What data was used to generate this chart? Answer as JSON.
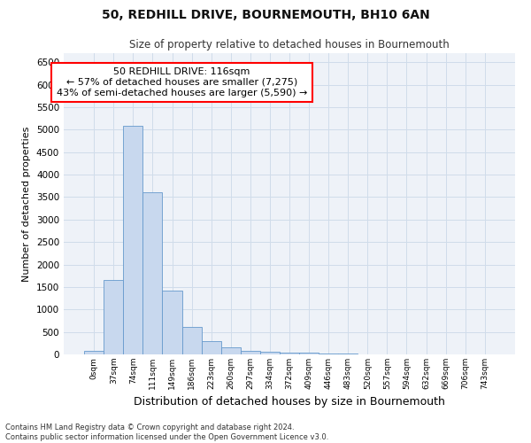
{
  "title": "50, REDHILL DRIVE, BOURNEMOUTH, BH10 6AN",
  "subtitle": "Size of property relative to detached houses in Bournemouth",
  "xlabel": "Distribution of detached houses by size in Bournemouth",
  "ylabel": "Number of detached properties",
  "bin_labels": [
    "0sqm",
    "37sqm",
    "74sqm",
    "111sqm",
    "149sqm",
    "186sqm",
    "223sqm",
    "260sqm",
    "297sqm",
    "334sqm",
    "372sqm",
    "409sqm",
    "446sqm",
    "483sqm",
    "520sqm",
    "557sqm",
    "594sqm",
    "632sqm",
    "669sqm",
    "706sqm",
    "743sqm"
  ],
  "bar_values": [
    75,
    1650,
    5080,
    3600,
    1420,
    620,
    300,
    150,
    80,
    50,
    40,
    30,
    20,
    10,
    8,
    5,
    4,
    3,
    2,
    2,
    2
  ],
  "bar_color": "#c8d8ee",
  "bar_edge_color": "#6699cc",
  "grid_color": "#d0dcea",
  "plot_bg_color": "#eef2f8",
  "annotation_text": "50 REDHILL DRIVE: 116sqm\n← 57% of detached houses are smaller (7,275)\n43% of semi-detached houses are larger (5,590) →",
  "ylim_max": 6700,
  "yticks": [
    0,
    500,
    1000,
    1500,
    2000,
    2500,
    3000,
    3500,
    4000,
    4500,
    5000,
    5500,
    6000,
    6500
  ],
  "footer_line1": "Contains HM Land Registry data © Crown copyright and database right 2024.",
  "footer_line2": "Contains public sector information licensed under the Open Government Licence v3.0.",
  "title_fontsize": 10,
  "subtitle_fontsize": 8.5,
  "ylabel_fontsize": 8,
  "xlabel_fontsize": 9,
  "ytick_fontsize": 7.5,
  "xtick_fontsize": 6.5,
  "annotation_fontsize": 8,
  "footer_fontsize": 6
}
